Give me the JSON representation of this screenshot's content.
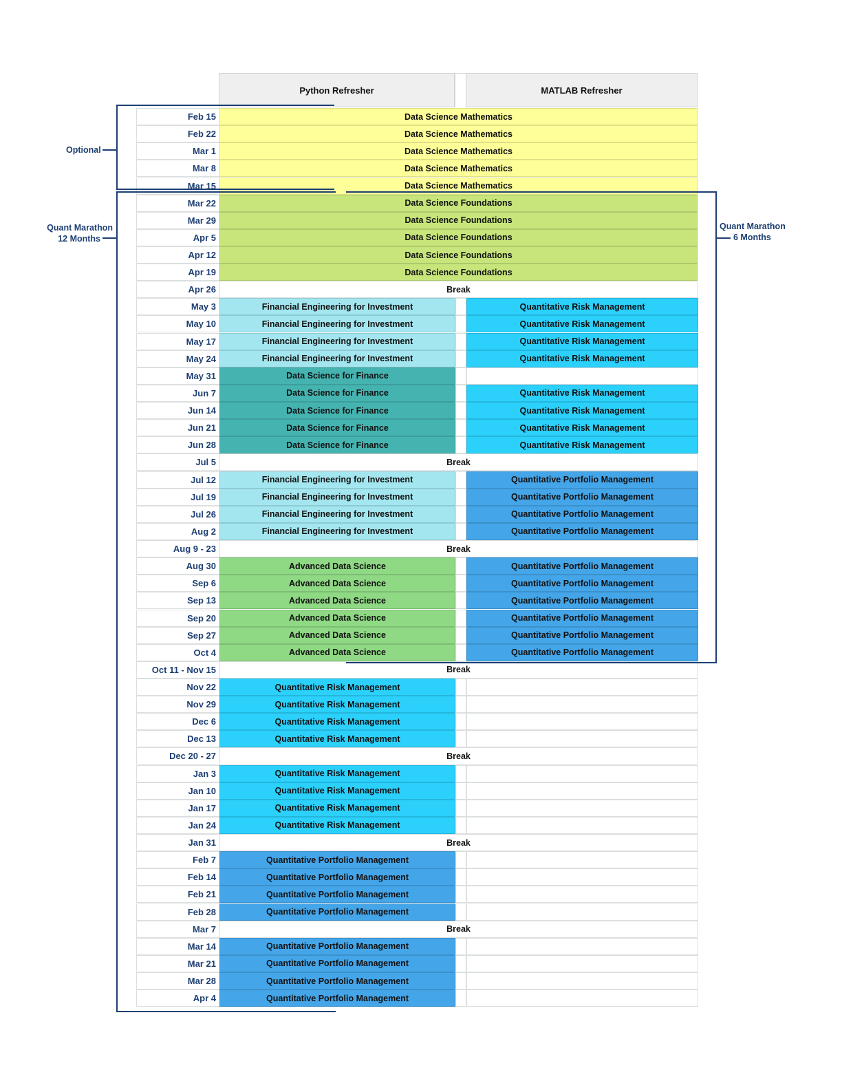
{
  "headers": {
    "python": "Python Refresher",
    "matlab": "MATLAB Refresher"
  },
  "brackets": {
    "optional": "Optional",
    "marathon12_line1": "Quant Marathon",
    "marathon12_line2": "12 Months",
    "marathon6_line1": "Quant Marathon",
    "marathon6_line2": "6 Months"
  },
  "colors": {
    "math": "#ffff99",
    "foundations": "#c7e57b",
    "fei": "#a3e6ef",
    "dsf": "#45b4b1",
    "qrm": "#2bd0fb",
    "qpm": "#44a5e8",
    "ads": "#8fd884"
  },
  "rows": [
    {
      "date": "Feb 15",
      "type": "span",
      "course": "Data Science Mathematics",
      "cls": "math"
    },
    {
      "date": "Feb 22",
      "type": "span",
      "course": "Data Science Mathematics",
      "cls": "math"
    },
    {
      "date": "Mar 1",
      "type": "span",
      "course": "Data Science Mathematics",
      "cls": "math"
    },
    {
      "date": "Mar 8",
      "type": "span",
      "course": "Data Science Mathematics",
      "cls": "math"
    },
    {
      "date": "Mar 15",
      "type": "span",
      "course": "Data Science Mathematics",
      "cls": "math"
    },
    {
      "date": "Mar 22",
      "type": "span",
      "course": "Data Science Foundations",
      "cls": "foundations"
    },
    {
      "date": "Mar 29",
      "type": "span",
      "course": "Data Science Foundations",
      "cls": "foundations"
    },
    {
      "date": "Apr 5",
      "type": "span",
      "course": "Data Science Foundations",
      "cls": "foundations"
    },
    {
      "date": "Apr 12",
      "type": "span",
      "course": "Data Science Foundations",
      "cls": "foundations"
    },
    {
      "date": "Apr 19",
      "type": "span",
      "course": "Data Science Foundations",
      "cls": "foundations"
    },
    {
      "date": "Apr 26",
      "type": "break",
      "course": "Break"
    },
    {
      "date": "May 3",
      "type": "split",
      "left": "Financial Engineering for Investment",
      "lcls": "fei",
      "right": "Quantitative Risk Management",
      "rcls": "qrm"
    },
    {
      "date": "May 10",
      "type": "split",
      "left": "Financial Engineering for Investment",
      "lcls": "fei",
      "right": "Quantitative Risk Management",
      "rcls": "qrm"
    },
    {
      "date": "May 17",
      "type": "split",
      "left": "Financial Engineering for Investment",
      "lcls": "fei",
      "right": "Quantitative Risk Management",
      "rcls": "qrm"
    },
    {
      "date": "May 24",
      "type": "split",
      "left": "Financial Engineering for Investment",
      "lcls": "fei",
      "right": "Quantitative Risk Management",
      "rcls": "qrm"
    },
    {
      "date": "May 31",
      "type": "split",
      "left": "Data Science for Finance",
      "lcls": "dsf",
      "right": "",
      "rcls": "blank"
    },
    {
      "date": "Jun 7",
      "type": "split",
      "left": "Data Science for Finance",
      "lcls": "dsf",
      "right": "Quantitative Risk Management",
      "rcls": "qrm"
    },
    {
      "date": "Jun 14",
      "type": "split",
      "left": "Data Science for Finance",
      "lcls": "dsf",
      "right": "Quantitative Risk Management",
      "rcls": "qrm"
    },
    {
      "date": "Jun 21",
      "type": "split",
      "left": "Data Science for Finance",
      "lcls": "dsf",
      "right": "Quantitative Risk Management",
      "rcls": "qrm"
    },
    {
      "date": "Jun 28",
      "type": "split",
      "left": "Data Science for Finance",
      "lcls": "dsf",
      "right": "Quantitative Risk Management",
      "rcls": "qrm"
    },
    {
      "date": "Jul 5",
      "type": "break",
      "course": "Break"
    },
    {
      "date": "Jul 12",
      "type": "split",
      "left": "Financial Engineering for Investment",
      "lcls": "fei",
      "right": "Quantitative Portfolio Management",
      "rcls": "qpm"
    },
    {
      "date": "Jul 19",
      "type": "split",
      "left": "Financial Engineering for Investment",
      "lcls": "fei",
      "right": "Quantitative Portfolio Management",
      "rcls": "qpm"
    },
    {
      "date": "Jul 26",
      "type": "split",
      "left": "Financial Engineering for Investment",
      "lcls": "fei",
      "right": "Quantitative Portfolio Management",
      "rcls": "qpm"
    },
    {
      "date": "Aug 2",
      "type": "split",
      "left": "Financial Engineering for Investment",
      "lcls": "fei",
      "right": "Quantitative Portfolio Management",
      "rcls": "qpm"
    },
    {
      "date": "Aug 9 - 23",
      "type": "break",
      "course": "Break"
    },
    {
      "date": "Aug 30",
      "type": "split",
      "left": "Advanced Data Science",
      "lcls": "ads",
      "right": "Quantitative Portfolio Management",
      "rcls": "qpm"
    },
    {
      "date": "Sep 6",
      "type": "split",
      "left": "Advanced Data Science",
      "lcls": "ads",
      "right": "Quantitative Portfolio Management",
      "rcls": "qpm"
    },
    {
      "date": "Sep 13",
      "type": "split",
      "left": "Advanced Data Science",
      "lcls": "ads",
      "right": "Quantitative Portfolio Management",
      "rcls": "qpm"
    },
    {
      "date": "Sep 20",
      "type": "split",
      "left": "Advanced Data Science",
      "lcls": "ads",
      "right": "Quantitative Portfolio Management",
      "rcls": "qpm"
    },
    {
      "date": "Sep 27",
      "type": "split",
      "left": "Advanced Data Science",
      "lcls": "ads",
      "right": "Quantitative Portfolio Management",
      "rcls": "qpm"
    },
    {
      "date": "Oct 4",
      "type": "split",
      "left": "Advanced Data Science",
      "lcls": "ads",
      "right": "Quantitative Portfolio Management",
      "rcls": "qpm"
    },
    {
      "date": "Oct 11 - Nov 15",
      "type": "break",
      "course": "Break"
    },
    {
      "date": "Nov 22",
      "type": "split",
      "left": "Quantitative Risk Management",
      "lcls": "qrm",
      "right": "",
      "rcls": "blank"
    },
    {
      "date": "Nov 29",
      "type": "split",
      "left": "Quantitative Risk Management",
      "lcls": "qrm",
      "right": "",
      "rcls": "blank"
    },
    {
      "date": "Dec 6",
      "type": "split",
      "left": "Quantitative Risk Management",
      "lcls": "qrm",
      "right": "",
      "rcls": "blank"
    },
    {
      "date": "Dec 13",
      "type": "split",
      "left": "Quantitative Risk Management",
      "lcls": "qrm",
      "right": "",
      "rcls": "blank"
    },
    {
      "date": "Dec 20 - 27",
      "type": "break",
      "course": "Break"
    },
    {
      "date": "Jan 3",
      "type": "split",
      "left": "Quantitative Risk Management",
      "lcls": "qrm",
      "right": "",
      "rcls": "blank"
    },
    {
      "date": "Jan 10",
      "type": "split",
      "left": "Quantitative Risk Management",
      "lcls": "qrm",
      "right": "",
      "rcls": "blank"
    },
    {
      "date": "Jan 17",
      "type": "split",
      "left": "Quantitative Risk Management",
      "lcls": "qrm",
      "right": "",
      "rcls": "blank"
    },
    {
      "date": "Jan 24",
      "type": "split",
      "left": "Quantitative Risk Management",
      "lcls": "qrm",
      "right": "",
      "rcls": "blank"
    },
    {
      "date": "Jan 31",
      "type": "break",
      "course": "Break"
    },
    {
      "date": "Feb 7",
      "type": "split",
      "left": "Quantitative Portfolio Management",
      "lcls": "qpm",
      "right": "",
      "rcls": "blank"
    },
    {
      "date": "Feb 14",
      "type": "split",
      "left": "Quantitative Portfolio Management",
      "lcls": "qpm",
      "right": "",
      "rcls": "blank"
    },
    {
      "date": "Feb 21",
      "type": "split",
      "left": "Quantitative Portfolio Management",
      "lcls": "qpm",
      "right": "",
      "rcls": "blank"
    },
    {
      "date": "Feb 28",
      "type": "split",
      "left": "Quantitative Portfolio Management",
      "lcls": "qpm",
      "right": "",
      "rcls": "blank"
    },
    {
      "date": "Mar 7",
      "type": "break",
      "course": "Break"
    },
    {
      "date": "Mar 14",
      "type": "split",
      "left": "Quantitative Portfolio Management",
      "lcls": "qpm",
      "right": "",
      "rcls": "blank"
    },
    {
      "date": "Mar 21",
      "type": "split",
      "left": "Quantitative Portfolio Management",
      "lcls": "qpm",
      "right": "",
      "rcls": "blank"
    },
    {
      "date": "Mar 28",
      "type": "split",
      "left": "Quantitative Portfolio Management",
      "lcls": "qpm",
      "right": "",
      "rcls": "blank"
    },
    {
      "date": "Apr 4",
      "type": "split",
      "left": "Quantitative Portfolio Management",
      "lcls": "qpm",
      "right": "",
      "rcls": "blank"
    }
  ]
}
